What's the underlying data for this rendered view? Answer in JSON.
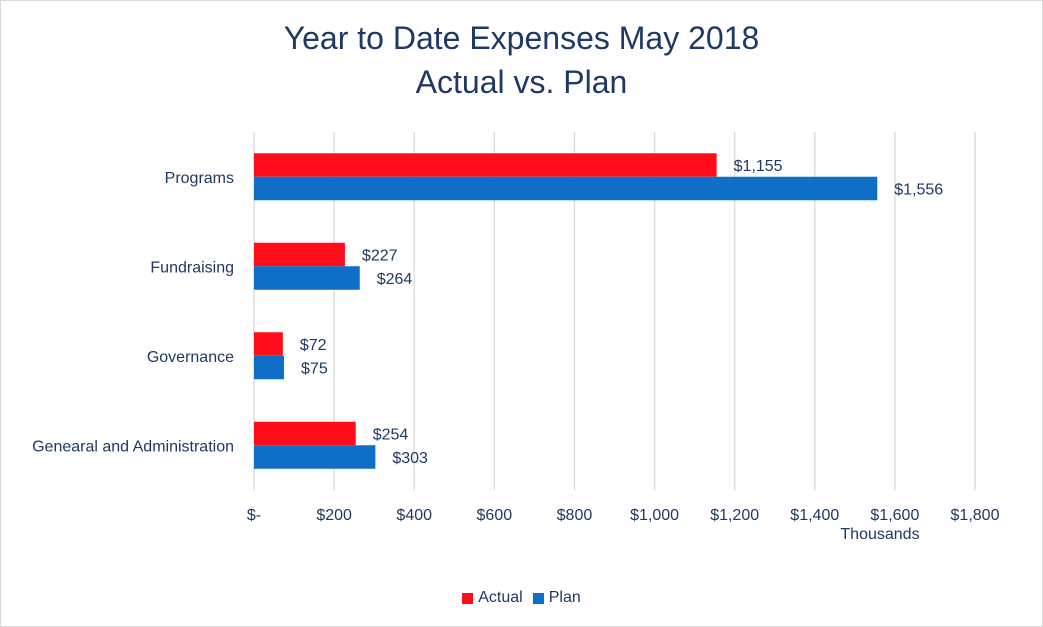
{
  "chart_data": {
    "type": "bar",
    "orientation": "horizontal",
    "title": "Year to Date Expenses May 2018",
    "subtitle": "Actual vs. Plan",
    "xlabel": "Thousands",
    "ylabel": "",
    "categories": [
      "Programs",
      "Fundraising",
      "Governance",
      "Genearal and Administration"
    ],
    "series": [
      {
        "name": "Actual",
        "color": "#ff0d1a",
        "values": [
          1155,
          227,
          72,
          254
        ],
        "labels": [
          "$1,155",
          "$227",
          "$72",
          "$254"
        ]
      },
      {
        "name": "Plan",
        "color": "#0f6fc6",
        "values": [
          1556,
          264,
          75,
          303
        ],
        "labels": [
          "$1,556",
          "$264",
          "$75",
          "$303"
        ]
      }
    ],
    "xlim": [
      0,
      1800
    ],
    "xticks": [
      0,
      200,
      400,
      600,
      800,
      1000,
      1200,
      1400,
      1600,
      1800
    ],
    "xtick_labels": [
      "$-",
      "$200",
      "$400",
      "$600",
      "$800",
      "$1,000",
      "$1,200",
      "$1,400",
      "$1,600",
      "$1,800"
    ],
    "grid": true,
    "legend": "bottom"
  }
}
